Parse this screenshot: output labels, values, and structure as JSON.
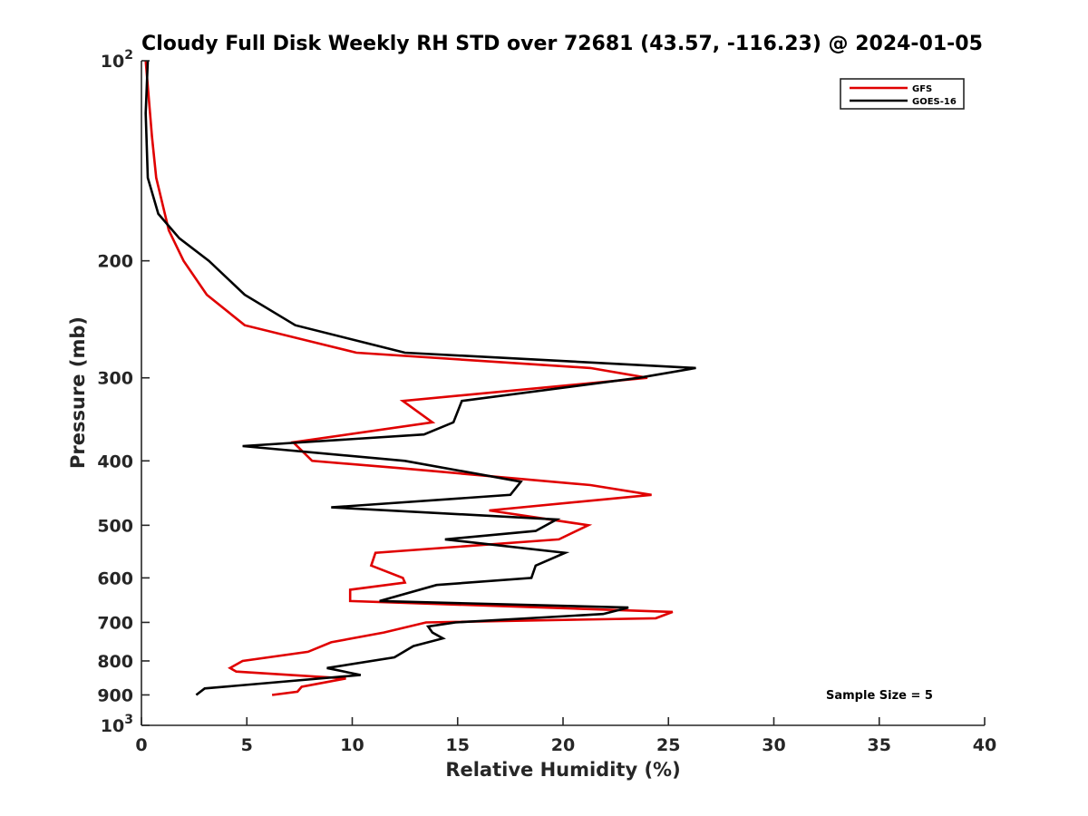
{
  "chart_data": {
    "type": "line",
    "title": "Cloudy Full Disk Weekly RH STD over 72681 (43.57, -116.23) @ 2024-01-05",
    "xlabel": "Relative Humidity (%)",
    "ylabel": "Pressure (mb)",
    "xlim": [
      0,
      40
    ],
    "ylim": [
      100,
      1000
    ],
    "y_scale": "log",
    "y_reversed": true,
    "grid": false,
    "legend_position": "top-right",
    "x_ticks": [
      0,
      5,
      10,
      15,
      20,
      25,
      30,
      35,
      40
    ],
    "x_tick_labels": [
      "0",
      "5",
      "10",
      "15",
      "20",
      "25",
      "30",
      "35",
      "40"
    ],
    "y_ticks": [
      100,
      200,
      300,
      400,
      500,
      600,
      700,
      800,
      900,
      1000
    ],
    "y_tick_labels": [
      {
        "base": "10",
        "exp": "2"
      },
      {
        "text": "200"
      },
      {
        "text": "300"
      },
      {
        "text": "400"
      },
      {
        "text": "500"
      },
      {
        "text": "600"
      },
      {
        "text": "700"
      },
      {
        "text": "800"
      },
      {
        "text": "900"
      },
      {
        "base": "10",
        "exp": "3"
      }
    ],
    "series": [
      {
        "name": "GFS",
        "color": "#e00000",
        "points": [
          [
            0.2,
            100
          ],
          [
            0.5,
            130
          ],
          [
            0.7,
            150
          ],
          [
            1.3,
            180
          ],
          [
            2.0,
            200
          ],
          [
            3.1,
            225
          ],
          [
            4.9,
            250
          ],
          [
            10.2,
            275
          ],
          [
            21.3,
            290
          ],
          [
            24.0,
            300
          ],
          [
            12.4,
            325
          ],
          [
            13.8,
            350
          ],
          [
            7.2,
            375
          ],
          [
            8.1,
            400
          ],
          [
            12.2,
            410
          ],
          [
            21.3,
            435
          ],
          [
            24.2,
            450
          ],
          [
            16.5,
            475
          ],
          [
            21.2,
            500
          ],
          [
            19.8,
            525
          ],
          [
            11.1,
            550
          ],
          [
            10.9,
            575
          ],
          [
            12.4,
            600
          ],
          [
            12.5,
            610
          ],
          [
            9.9,
            625
          ],
          [
            9.9,
            650
          ],
          [
            25.2,
            675
          ],
          [
            24.4,
            690
          ],
          [
            13.5,
            700
          ],
          [
            11.5,
            725
          ],
          [
            9.0,
            750
          ],
          [
            7.9,
            775
          ],
          [
            4.8,
            800
          ],
          [
            4.2,
            820
          ],
          [
            4.5,
            830
          ],
          [
            9.7,
            850
          ],
          [
            7.6,
            875
          ],
          [
            7.4,
            890
          ],
          [
            6.2,
            900
          ]
        ]
      },
      {
        "name": "GOES-16",
        "color": "#000000",
        "points": [
          [
            0.3,
            100
          ],
          [
            0.2,
            120
          ],
          [
            0.3,
            150
          ],
          [
            0.8,
            170
          ],
          [
            1.8,
            185
          ],
          [
            3.2,
            200
          ],
          [
            4.9,
            225
          ],
          [
            7.3,
            250
          ],
          [
            12.5,
            275
          ],
          [
            26.3,
            290
          ],
          [
            23.6,
            300
          ],
          [
            15.2,
            325
          ],
          [
            14.8,
            350
          ],
          [
            13.4,
            365
          ],
          [
            4.8,
            380
          ],
          [
            12.5,
            400
          ],
          [
            18.0,
            430
          ],
          [
            17.5,
            450
          ],
          [
            9.0,
            470
          ],
          [
            19.7,
            490
          ],
          [
            18.7,
            510
          ],
          [
            14.4,
            525
          ],
          [
            20.1,
            550
          ],
          [
            18.7,
            575
          ],
          [
            18.5,
            600
          ],
          [
            14.0,
            615
          ],
          [
            11.3,
            650
          ],
          [
            23.1,
            665
          ],
          [
            21.9,
            680
          ],
          [
            14.9,
            700
          ],
          [
            13.6,
            710
          ],
          [
            13.8,
            725
          ],
          [
            14.3,
            740
          ],
          [
            12.9,
            760
          ],
          [
            12.0,
            790
          ],
          [
            8.8,
            820
          ],
          [
            10.4,
            840
          ],
          [
            3.0,
            880
          ],
          [
            2.6,
            900
          ]
        ]
      }
    ],
    "annotations": [
      "Sample Size = 5"
    ]
  }
}
